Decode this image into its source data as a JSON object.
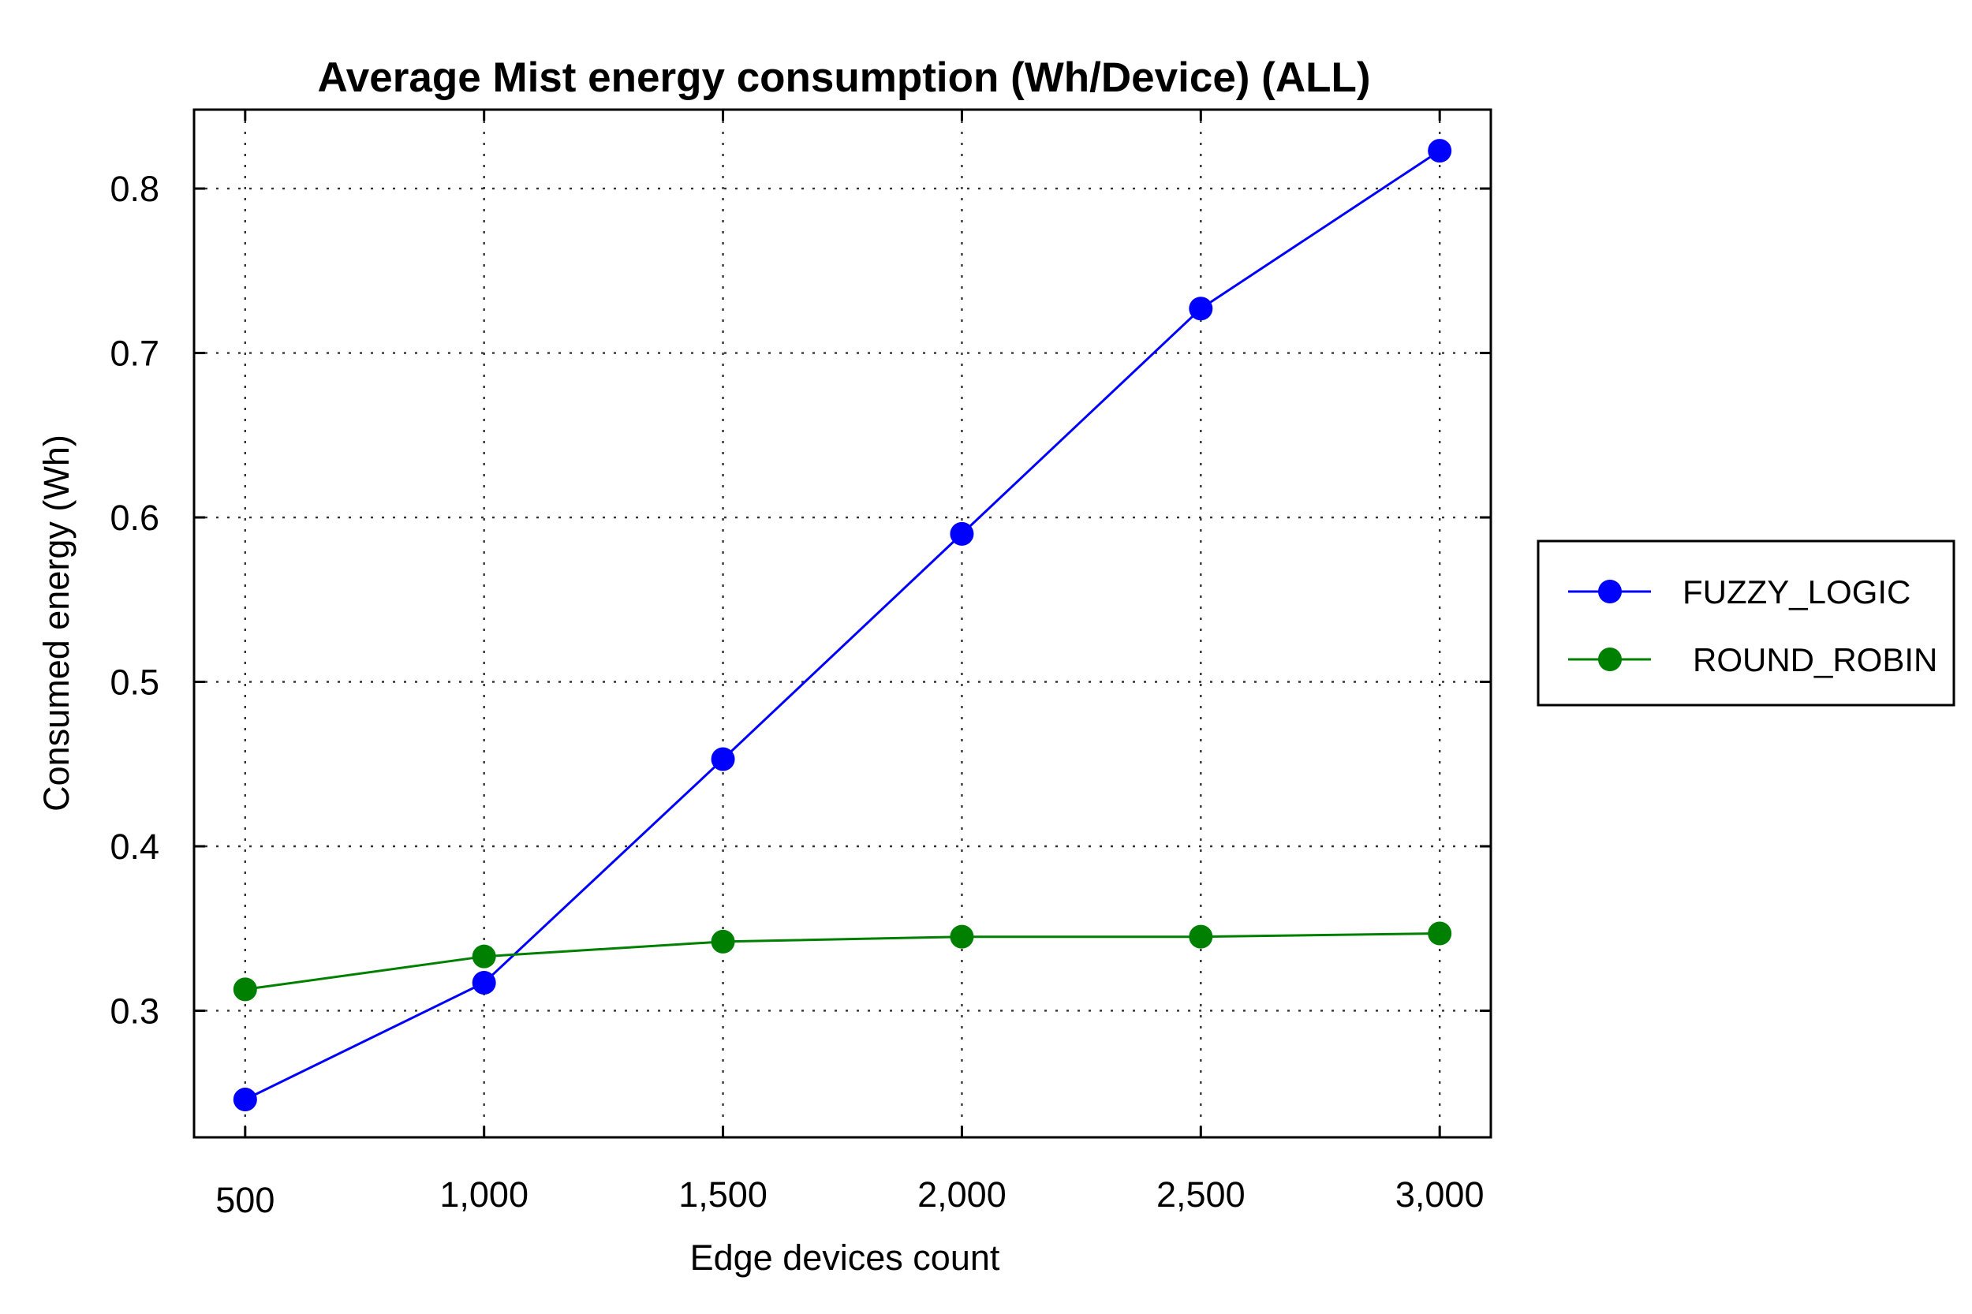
{
  "chart_data": {
    "type": "line",
    "title": "Average Mist energy consumption (Wh/Device) (ALL)",
    "xlabel": "Edge devices count",
    "ylabel": "Consumed energy (Wh)",
    "x": [
      500,
      1000,
      1500,
      2000,
      2500,
      3000
    ],
    "x_tick_labels": [
      "500",
      "1,000",
      "1,500",
      "2,000",
      "2,500",
      "3,000"
    ],
    "y_ticks": [
      0.3,
      0.4,
      0.5,
      0.6,
      0.7,
      0.8
    ],
    "y_tick_labels": [
      "0.3",
      "0.4",
      "0.5",
      "0.6",
      "0.7",
      "0.8"
    ],
    "xlim": [
      393,
      3107
    ],
    "ylim": [
      0.223,
      0.848
    ],
    "grid": true,
    "legend_position": "right",
    "series": [
      {
        "name": "FUZZY_LOGIC",
        "color": "#0000ff",
        "marker": "circle",
        "values": [
          0.246,
          0.317,
          0.453,
          0.59,
          0.727,
          0.823
        ]
      },
      {
        "name": "ROUND_ROBIN",
        "color": "#008000",
        "marker": "circle",
        "values": [
          0.313,
          0.333,
          0.342,
          0.345,
          0.345,
          0.347
        ]
      }
    ]
  }
}
